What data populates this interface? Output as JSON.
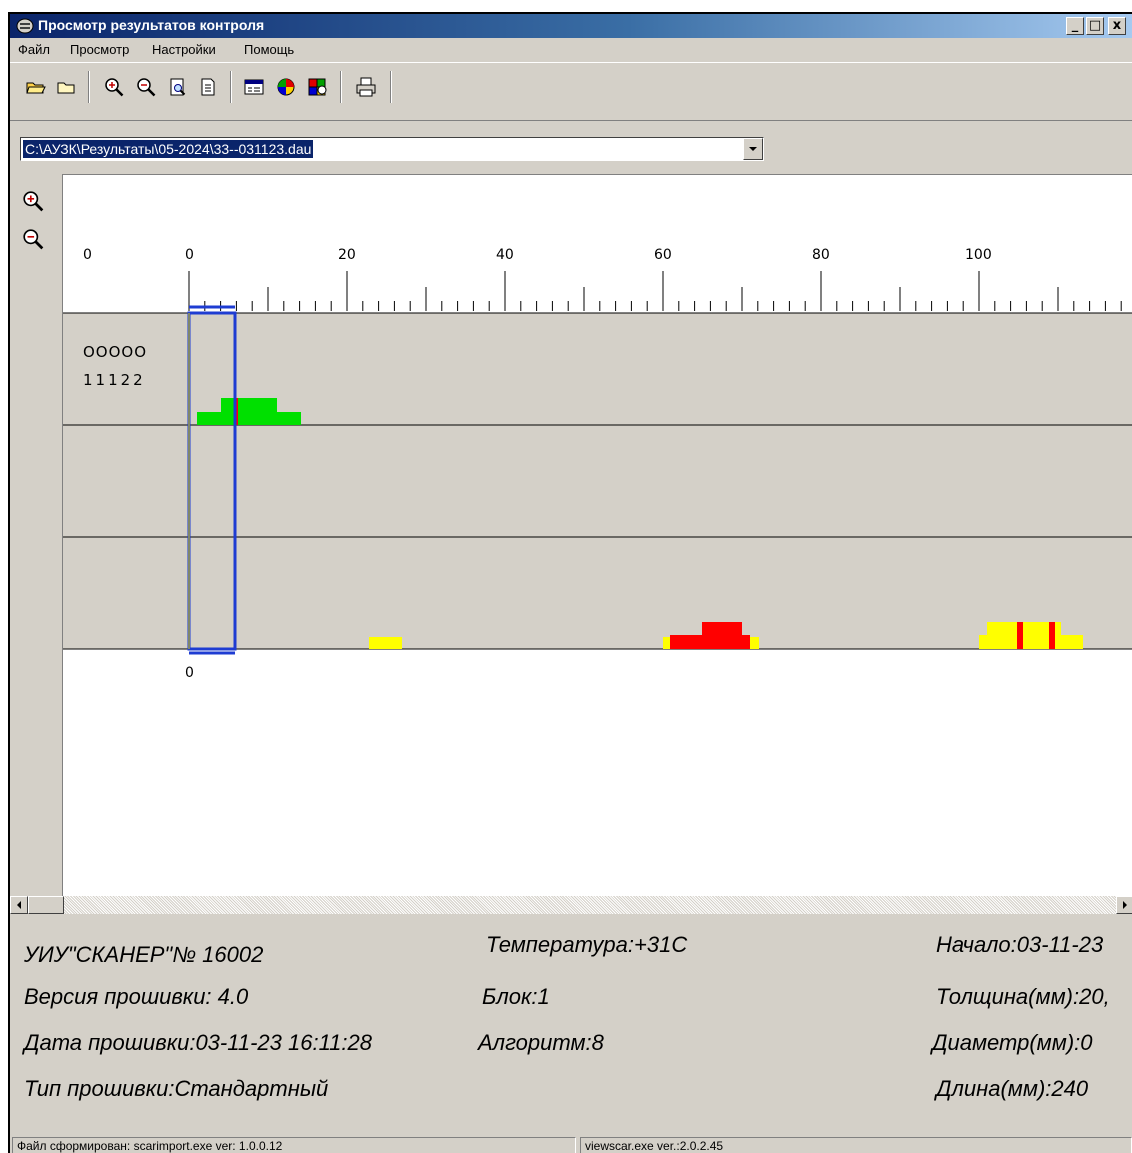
{
  "window": {
    "title": "Просмотр результатов контроля",
    "minimize": "_",
    "maximize": "□",
    "close": "x"
  },
  "menu": {
    "items": [
      "Файл",
      "Просмотр",
      "Настройки",
      "Помощь"
    ]
  },
  "toolbar": {
    "icons": [
      "open-folder-icon",
      "folder-icon",
      "zoom-in-icon",
      "zoom-out-icon",
      "zoom-page-icon",
      "document-icon",
      "window-icon",
      "color-palette-icon",
      "palette-settings-icon",
      "printer-icon"
    ]
  },
  "file_path": "C:\\АУЗК\\Результаты\\05-2024\\33--031123.dau",
  "side_tools": [
    "zoom-in-icon",
    "zoom-out-icon"
  ],
  "scan": {
    "left_label": "0",
    "ruler_labels": [
      "0",
      "20",
      "40",
      "60",
      "80",
      "100"
    ],
    "bottom_label": "0",
    "channel_codes": [
      "ООООО",
      "11122"
    ],
    "colors": {
      "green": "#00e000",
      "red": "#ff0000",
      "yellow": "#ffff00",
      "marker": "#1e3cd2",
      "track_bg": "#d4d0c8"
    }
  },
  "info": {
    "device": "УИУ\"СКАНЕР\"№ 16002",
    "firmware_version": "Версия прошивки: 4.0",
    "firmware_date": "Дата прошивки:03-11-23 16:11:28",
    "firmware_type": "Тип прошивки:Стандартный",
    "temperature": "Температура:+31С",
    "block": "Блок:1",
    "algorithm": "Алгоритм:8",
    "start": "Начало:03-11-23",
    "thickness": "Толщина(мм):20,",
    "diameter": "Диаметр(мм):0",
    "length": "Длина(мм):240"
  },
  "status": {
    "left": "Файл сформирован: scarimport.exe ver: 1.0.0.12",
    "right": "viewscar.exe ver.:2.0.2.45"
  }
}
